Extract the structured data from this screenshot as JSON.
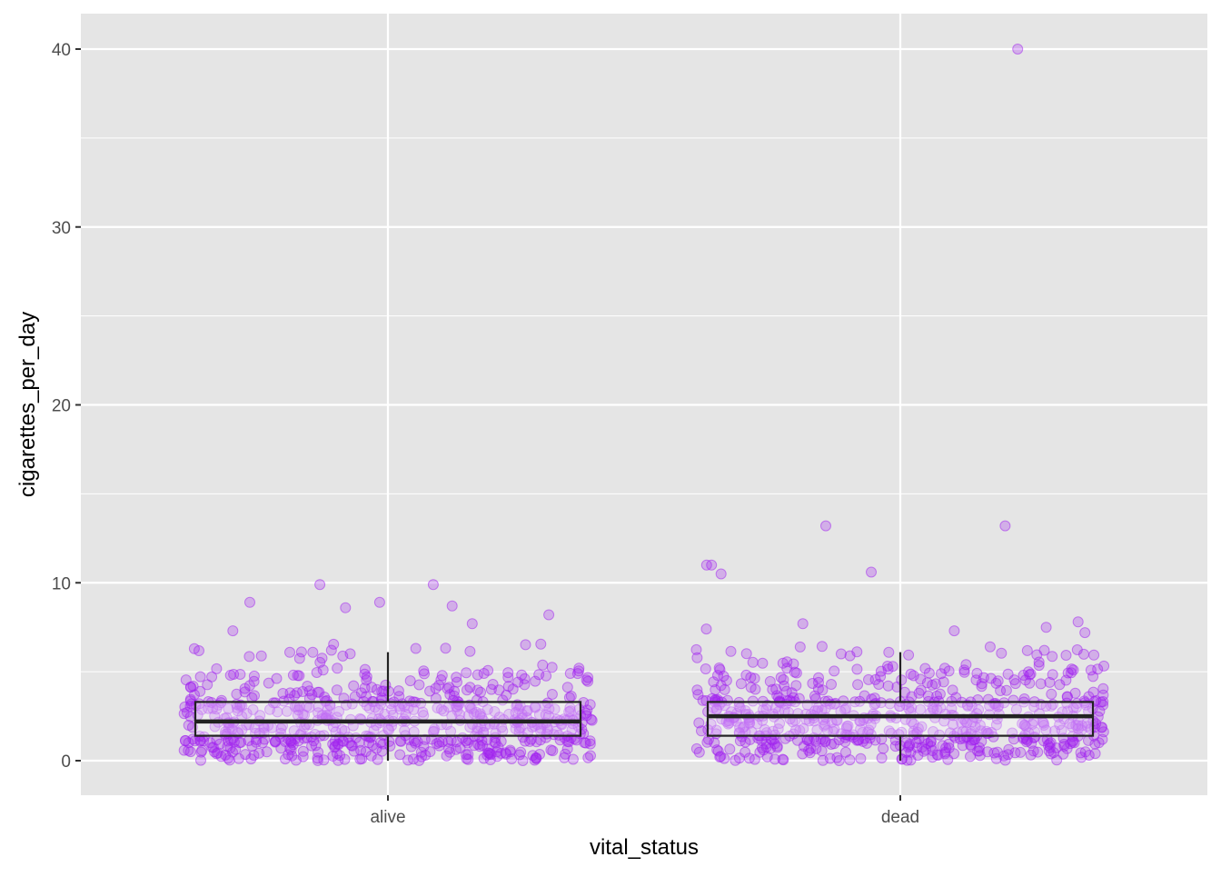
{
  "chart_data": {
    "type": "boxplot",
    "xlabel": "vital_status",
    "ylabel": "cigarettes_per_day",
    "categories": [
      "alive",
      "dead"
    ],
    "y_ticks": [
      0,
      10,
      20,
      30,
      40
    ],
    "y_tick_labels": [
      "0",
      "10",
      "20",
      "30",
      "40"
    ],
    "ylim": [
      -2,
      42
    ],
    "grid": true,
    "panel_background": "#e5e5e5",
    "point_color": "#a020f0",
    "box_color": "#222222",
    "boxes": [
      {
        "category": "alive",
        "lower_whisker": 0.0,
        "q1": 1.4,
        "median": 2.2,
        "q3": 3.3,
        "upper_whisker": 6.1
      },
      {
        "category": "dead",
        "lower_whisker": 0.0,
        "q1": 1.4,
        "median": 2.5,
        "q3": 3.3,
        "upper_whisker": 6.1
      }
    ],
    "notable_points": [
      {
        "category": "alive",
        "values": [
          9.9,
          9.9,
          8.9,
          8.9,
          8.7,
          8.6,
          8.2,
          7.7,
          7.3
        ]
      },
      {
        "category": "dead",
        "values": [
          40.0,
          13.2,
          13.2,
          11.0,
          11.0,
          10.6,
          10.5,
          7.8,
          7.7,
          7.5,
          7.4,
          7.3,
          7.2
        ]
      }
    ],
    "jitter_points_per_group": 650
  }
}
